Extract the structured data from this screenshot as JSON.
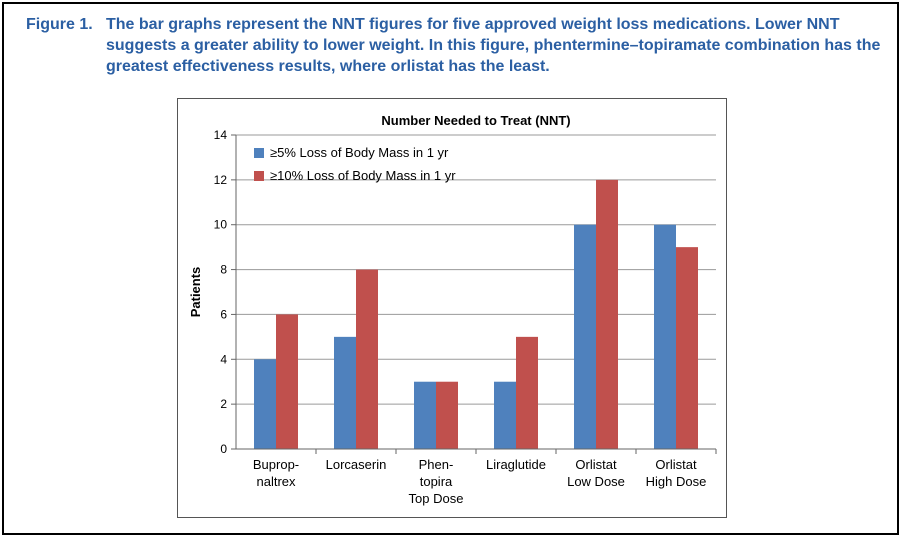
{
  "caption": {
    "label": "Figure 1.",
    "text": "The bar graphs represent the NNT figures for five approved weight loss medications. Lower NNT suggests a greater ability to lower weight. In this figure, phentermine–topiramate combination has the greatest effectiveness results, where orlistat has the least."
  },
  "colors": {
    "series1": "#4f81bd",
    "series2": "#c0504d",
    "caption": "#2b5fa3"
  },
  "chart_data": {
    "type": "bar",
    "title": "Number Needed to Treat (NNT)",
    "xlabel": "",
    "ylabel": "Patients",
    "ylim": [
      0,
      14
    ],
    "yticks": [
      0,
      2,
      4,
      6,
      8,
      10,
      12,
      14
    ],
    "grid": true,
    "legend": "top-left",
    "categories": [
      [
        "Bupro p-",
        "naltrex"
      ],
      [
        "Lorcaserin"
      ],
      [
        "Phen-",
        "topira",
        "Top Dose"
      ],
      [
        "Liraglutide"
      ],
      [
        "Orlistat",
        "Low Dose"
      ],
      [
        "Orlistat",
        "High Dose"
      ]
    ],
    "series": [
      {
        "name": "≥5% Loss of Body Mass in 1 yr",
        "values": [
          4,
          5,
          3,
          3,
          10,
          10
        ]
      },
      {
        "name": "≥10% Loss of Body Mass in 1 yr",
        "values": [
          6,
          8,
          3,
          5,
          12,
          9
        ]
      }
    ]
  }
}
